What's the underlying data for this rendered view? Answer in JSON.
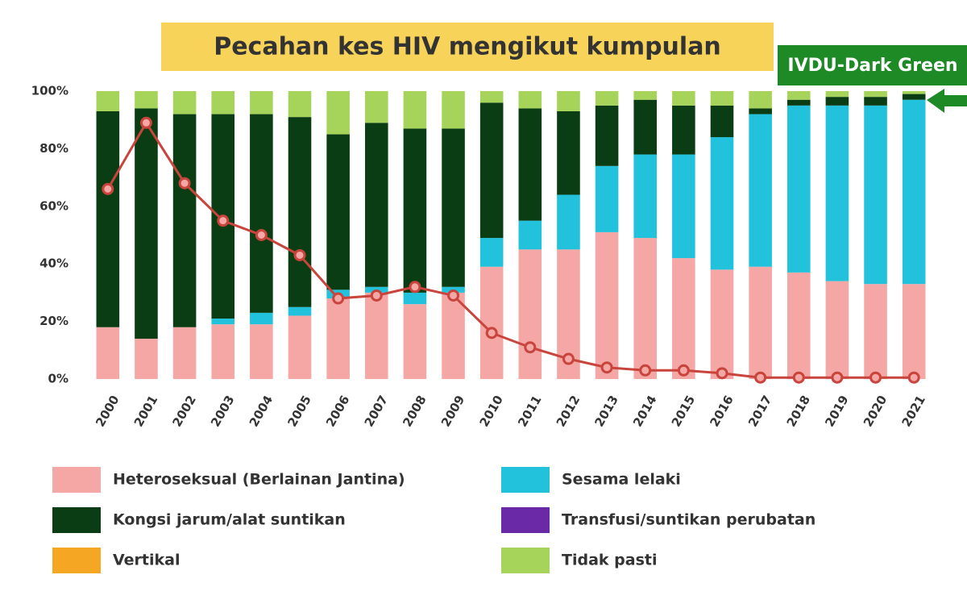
{
  "chart_data": {
    "type": "stacked-bar",
    "title": "Pecahan kes HIV mengikut kumpulan",
    "annotation": "IVDU-Dark Green",
    "categories": [
      "2000",
      "2001",
      "2002",
      "2003",
      "2004",
      "2005",
      "2006",
      "2007",
      "2008",
      "2009",
      "2010",
      "2011",
      "2012",
      "2013",
      "2014",
      "2015",
      "2016",
      "2017",
      "2018",
      "2019",
      "2020",
      "2021"
    ],
    "series": [
      {
        "name": "Heteroseksual (Berlainan Jantina)",
        "color": "#f4a7a5",
        "values": [
          18,
          14,
          18,
          19,
          19,
          22,
          28,
          30,
          26,
          30,
          39,
          45,
          45,
          51,
          49,
          42,
          38,
          39,
          37,
          34,
          33,
          33
        ]
      },
      {
        "name": "Sesama lelaki",
        "color": "#22c2dc",
        "values": [
          0,
          0,
          0,
          2,
          4,
          3,
          3,
          2,
          4,
          2,
          10,
          10,
          19,
          23,
          29,
          36,
          46,
          53,
          58,
          61,
          62,
          64
        ]
      },
      {
        "name": "Kongsi jarum/alat suntikan",
        "color": "#0b3d14",
        "values": [
          75,
          80,
          74,
          71,
          69,
          66,
          54,
          57,
          57,
          55,
          47,
          39,
          29,
          21,
          19,
          17,
          11,
          2,
          2,
          3,
          3,
          2
        ]
      },
      {
        "name": "Transfusi/suntikan perubatan",
        "color": "#6a2aa8",
        "values": [
          0,
          0,
          0,
          0,
          0,
          0,
          0,
          0,
          0,
          0,
          0,
          0,
          0,
          0,
          0,
          0,
          0,
          0,
          0,
          0,
          0,
          0
        ]
      },
      {
        "name": "Vertikal",
        "color": "#f5a623",
        "values": [
          0,
          0,
          0,
          0,
          0,
          0,
          0,
          0,
          0,
          0,
          0,
          0,
          0,
          0,
          0,
          0,
          0,
          0,
          0,
          0,
          0,
          0
        ]
      },
      {
        "name": "Tidak pasti",
        "color": "#a6d45a",
        "values": [
          7,
          6,
          8,
          8,
          8,
          9,
          15,
          11,
          13,
          13,
          4,
          6,
          7,
          5,
          3,
          5,
          5,
          6,
          3,
          2,
          2,
          1
        ]
      }
    ],
    "line": {
      "color": "#c8443c",
      "values": [
        66,
        89,
        68,
        55,
        50,
        43,
        28,
        29,
        32,
        29,
        16,
        11,
        7,
        4,
        3,
        3,
        2,
        0.5,
        0.5,
        0.5,
        0.5,
        0.5
      ]
    },
    "ylim": [
      0,
      100
    ],
    "yticks": [
      {
        "value": 0,
        "label": "0%"
      },
      {
        "value": 20,
        "label": "20%"
      },
      {
        "value": 40,
        "label": "40%"
      },
      {
        "value": 60,
        "label": "60%"
      },
      {
        "value": 80,
        "label": "80%"
      },
      {
        "value": 100,
        "label": "100%"
      }
    ]
  }
}
